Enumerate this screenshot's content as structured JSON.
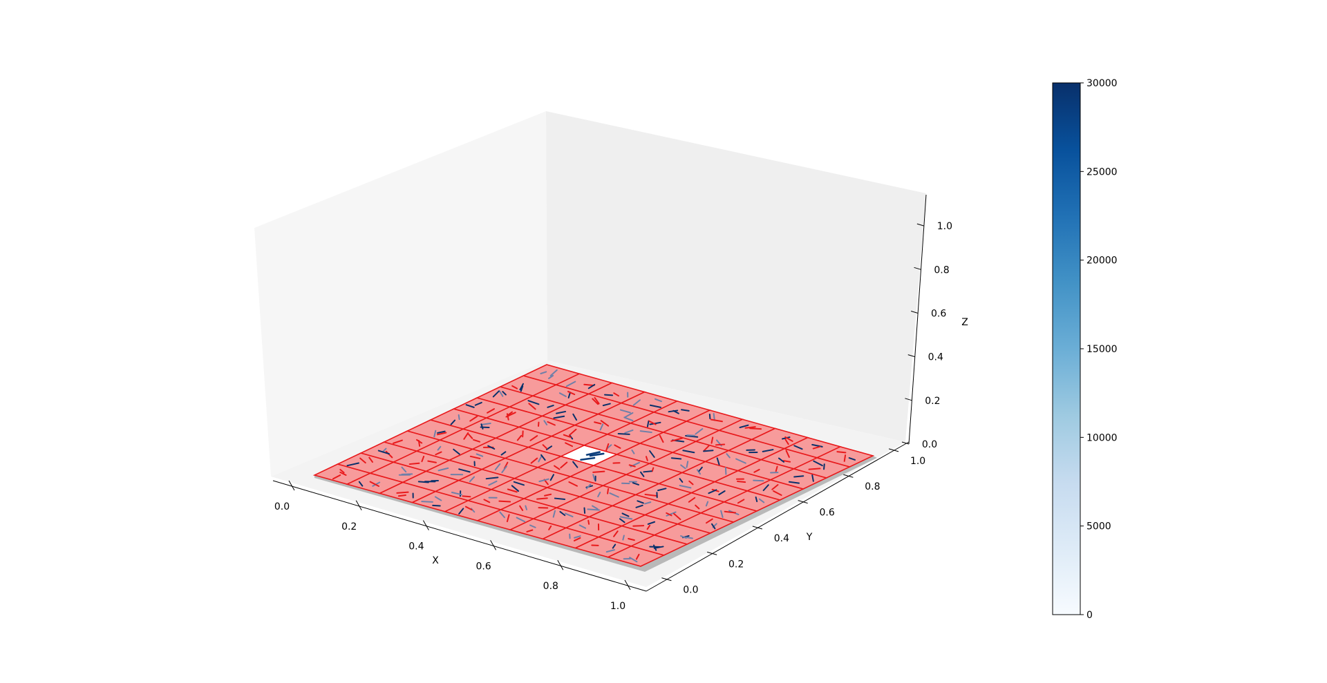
{
  "chart_data": {
    "type": "3d-surface-quiver",
    "title": "",
    "xlabel": "X",
    "ylabel": "Y",
    "zlabel": "Z",
    "xlim": [
      0.0,
      1.0
    ],
    "ylim": [
      0.0,
      1.0
    ],
    "zlim": [
      0.0,
      1.0
    ],
    "x_ticks": [
      "0.0",
      "0.2",
      "0.4",
      "0.6",
      "0.8",
      "1.0"
    ],
    "y_ticks": [
      "0.0",
      "0.2",
      "0.4",
      "0.6",
      "0.8",
      "1.0"
    ],
    "z_ticks": [
      "0.0",
      "0.2",
      "0.4",
      "0.6",
      "0.8",
      "1.0"
    ],
    "grid": false,
    "plane": {
      "z": 0.0,
      "cells": 10,
      "face_color": "#f79b9b",
      "edge_color": "#e8191b",
      "highlight_cell": {
        "i": 4,
        "j": 5,
        "face_color": "#ffffff"
      }
    },
    "quiver": {
      "per_cell": 3,
      "colors": [
        "#08306b",
        "#e8191b",
        "#6e7fa8"
      ],
      "highlight_color": "#0b3d7a"
    },
    "colorbar": {
      "cmap": "Blues",
      "min": 0,
      "max": 30000,
      "ticks": [
        "0",
        "5000",
        "10000",
        "15000",
        "20000",
        "25000",
        "30000"
      ],
      "color_low": "#f7fbff",
      "color_high": "#08306b"
    }
  }
}
